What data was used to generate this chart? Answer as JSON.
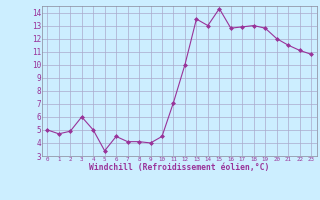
{
  "x": [
    0,
    1,
    2,
    3,
    4,
    5,
    6,
    7,
    8,
    9,
    10,
    11,
    12,
    13,
    14,
    15,
    16,
    17,
    18,
    19,
    20,
    21,
    22,
    23
  ],
  "y": [
    5.0,
    4.7,
    4.9,
    6.0,
    5.0,
    3.4,
    4.5,
    4.1,
    4.1,
    4.0,
    4.5,
    7.1,
    10.0,
    13.5,
    13.0,
    14.3,
    12.8,
    12.9,
    13.0,
    12.8,
    12.0,
    11.5,
    11.1,
    10.8
  ],
  "line_color": "#993399",
  "marker": "D",
  "marker_size": 2.0,
  "bg_color": "#cceeff",
  "grid_color": "#aaaacc",
  "xlabel": "Windchill (Refroidissement éolien,°C)",
  "xlabel_color": "#993399",
  "tick_color": "#993399",
  "ylim": [
    3,
    14.5
  ],
  "xlim": [
    -0.5,
    23.5
  ],
  "yticks": [
    3,
    4,
    5,
    6,
    7,
    8,
    9,
    10,
    11,
    12,
    13,
    14
  ],
  "xticks": [
    0,
    1,
    2,
    3,
    4,
    5,
    6,
    7,
    8,
    9,
    10,
    11,
    12,
    13,
    14,
    15,
    16,
    17,
    18,
    19,
    20,
    21,
    22,
    23
  ]
}
